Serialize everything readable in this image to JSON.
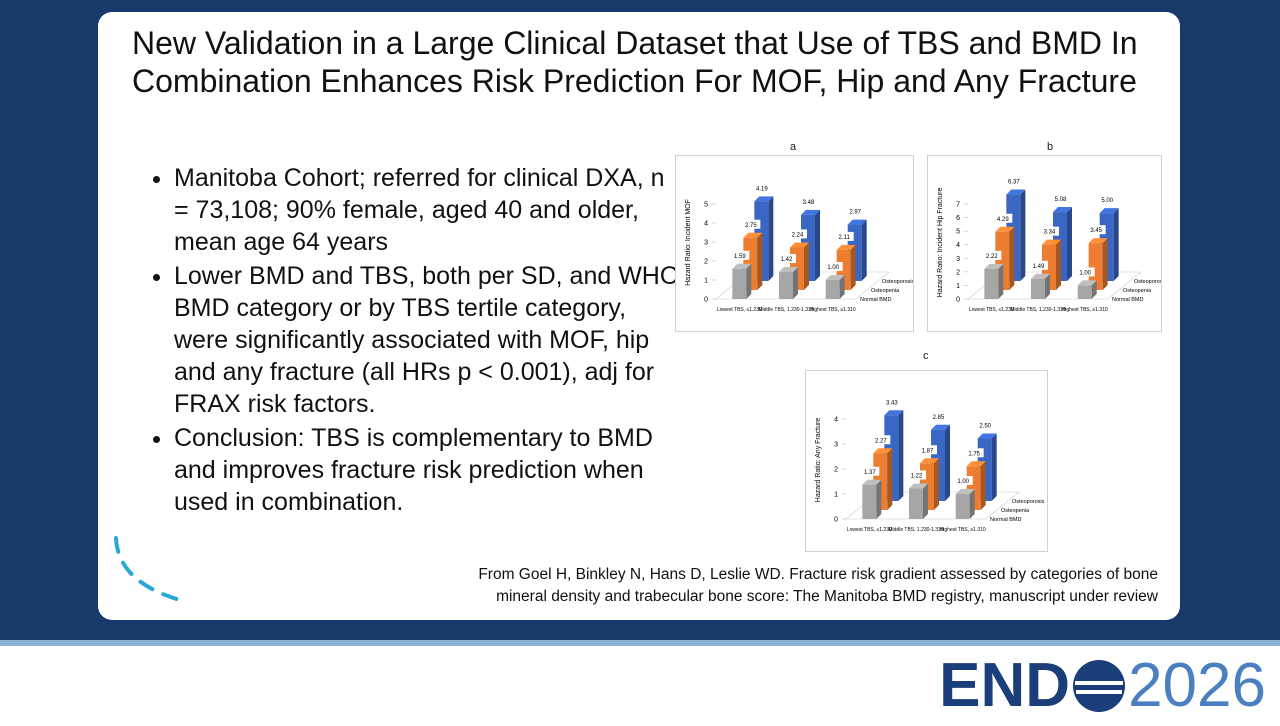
{
  "title": "New Validation in a Large Clinical Dataset that Use of TBS and BMD In Combination Enhances Risk Prediction For MOF, Hip and Any Fracture",
  "bullets": [
    "Manitoba Cohort; referred for clinical DXA, n = 73,108; 90% female, aged 40 and older, mean age 64 years",
    "Lower BMD and TBS, both per SD, and WHO BMD category or by TBS tertile category, were significantly associated with MOF, hip and any fracture (all HRs p < 0.001), adj for FRAX risk factors.",
    "Conclusion: TBS is complementary to BMD and improves fracture risk prediction when used in combination."
  ],
  "citation": [
    "From Goel H, Binkley N, Hans D, Leslie WD.  Fracture risk gradient assessed by categories of bone",
    "mineral density and trabecular bone score: The Manitoba BMD registry, manuscript under review"
  ],
  "logo": {
    "left": "END",
    "right": "2026"
  },
  "chart_data": [
    {
      "type": "bar3d",
      "title": "a",
      "y_label": "Hazard Ratio:  Incident MOF",
      "categories": [
        "Lowest TBS, ≤1.230",
        "Middle TBS, 1.230-1.310",
        "Highest TBS, ≥1.310"
      ],
      "ylim": [
        0,
        5
      ],
      "yticks": [
        0,
        1,
        2,
        3,
        4,
        5
      ],
      "series": [
        {
          "name": "Normal BMD",
          "color": "#a6a6a6",
          "values": [
            1.59,
            1.42,
            1.0
          ],
          "value_labels": [
            "1.59",
            "1.42",
            "1.00"
          ]
        },
        {
          "name": "Osteopenia",
          "color": "#ed7d31",
          "values": [
            2.75,
            2.24,
            2.11
          ],
          "value_labels": [
            "2.75",
            "2.24",
            "2.11"
          ]
        },
        {
          "name": "Osteoporosis",
          "color": "#3a66c4",
          "values": [
            4.19,
            3.48,
            2.97
          ],
          "value_labels": [
            "4.19",
            "3.48",
            "2.97"
          ]
        }
      ]
    },
    {
      "type": "bar3d",
      "title": "b",
      "y_label": "Hazard Ratio:  Incident Hip Fracture",
      "categories": [
        "Lowest TBS, ≤1.230",
        "Middle TBS, 1.230-1.310",
        "Highest TBS, ≥1.310"
      ],
      "ylim": [
        0,
        7
      ],
      "yticks": [
        0,
        1,
        2,
        3,
        4,
        5,
        6,
        7
      ],
      "series": [
        {
          "name": "Normal BMD",
          "color": "#a6a6a6",
          "values": [
            2.22,
            1.49,
            1.0
          ],
          "value_labels": [
            "2.22",
            "1.49",
            "1.00"
          ]
        },
        {
          "name": "Osteopenia",
          "color": "#ed7d31",
          "values": [
            4.29,
            3.34,
            3.45
          ],
          "value_labels": [
            "4.29",
            "3.34",
            "3.45"
          ]
        },
        {
          "name": "Osteoporosis",
          "color": "#3a66c4",
          "values": [
            6.37,
            5.08,
            5.0
          ],
          "value_labels": [
            "6.37",
            "5.08",
            "5.00"
          ]
        }
      ]
    },
    {
      "type": "bar3d",
      "title": "c",
      "y_label": "Hazard Ratio: Any Fracture",
      "categories": [
        "Lowest TBS, ≤1.230",
        "Middle TBS, 1.230-1.310",
        "Highest TBS, ≥1.310"
      ],
      "ylim": [
        0,
        4
      ],
      "yticks": [
        0,
        1,
        2,
        3,
        4
      ],
      "series": [
        {
          "name": "Normal BMD",
          "color": "#a6a6a6",
          "values": [
            1.37,
            1.22,
            1.0
          ],
          "value_labels": [
            "1.37",
            "1.22",
            "1.00"
          ]
        },
        {
          "name": "Osteopenia",
          "color": "#ed7d31",
          "values": [
            2.27,
            1.87,
            1.75
          ],
          "value_labels": [
            "2.27",
            "1.87",
            "1.75"
          ]
        },
        {
          "name": "Osteoporosis",
          "color": "#3a66c4",
          "values": [
            3.43,
            2.85,
            2.5
          ],
          "value_labels": [
            "3.43",
            "2.85",
            "2.50"
          ]
        }
      ]
    }
  ]
}
